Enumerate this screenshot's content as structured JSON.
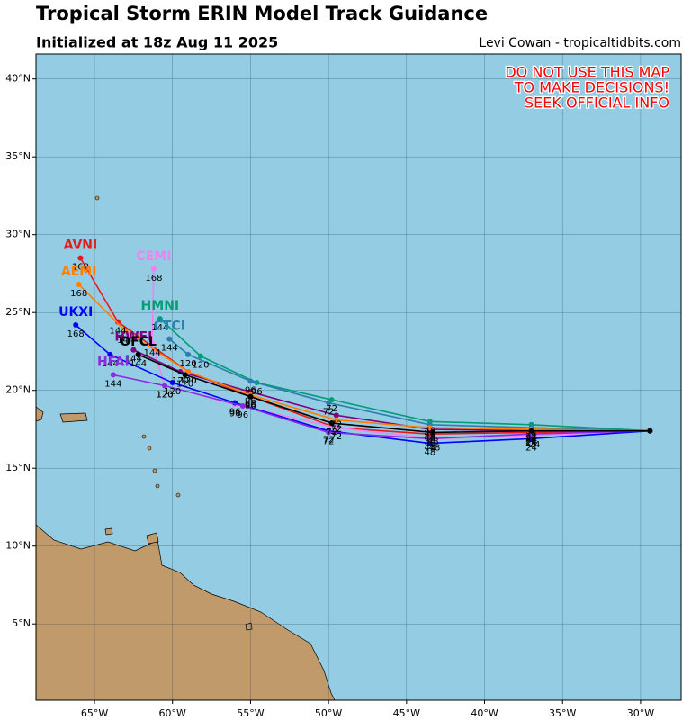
{
  "chart_data": {
    "type": "track-map",
    "title": "Tropical Storm ERIN Model Track Guidance",
    "subtitle": "Initialized at 18z Aug 11 2025",
    "credit": "Levi Cowan - tropicaltidbits.com",
    "warning": [
      "DO NOT USE THIS MAP",
      "TO MAKE DECISIONS!",
      "SEEK OFFICIAL INFO"
    ],
    "xlim": [
      -68.75,
      -27.4
    ],
    "ylim": [
      0.1,
      41.6
    ],
    "xticks": [
      {
        "value": -65,
        "label": "65°W"
      },
      {
        "value": -60,
        "label": "60°W"
      },
      {
        "value": -55,
        "label": "55°W"
      },
      {
        "value": -50,
        "label": "50°W"
      },
      {
        "value": -45,
        "label": "45°W"
      },
      {
        "value": -40,
        "label": "40°W"
      },
      {
        "value": -35,
        "label": "35°W"
      },
      {
        "value": -30,
        "label": "30°W"
      }
    ],
    "yticks": [
      {
        "value": 5,
        "label": "5°N"
      },
      {
        "value": 10,
        "label": "10°N"
      },
      {
        "value": 15,
        "label": "15°N"
      },
      {
        "value": 20,
        "label": "20°N"
      },
      {
        "value": 25,
        "label": "25°N"
      },
      {
        "value": 30,
        "label": "30°N"
      },
      {
        "value": 35,
        "label": "35°N"
      },
      {
        "value": 40,
        "label": "40°N"
      }
    ],
    "grid": true,
    "hours": [
      0,
      24,
      48,
      72,
      96,
      120,
      144,
      168
    ],
    "series": [
      {
        "name": "AVNI",
        "color": "#e41a1c",
        "lon": [
          -29.4,
          -37,
          -43.5,
          -49.5,
          -55,
          -59,
          -63.5,
          -65.9
        ],
        "lat": [
          17.4,
          17.3,
          17.2,
          17.6,
          19.6,
          21.2,
          24.4,
          28.5
        ]
      },
      {
        "name": "CEMI",
        "color": "#ee82ee",
        "lon": [
          -29.4,
          -36.8,
          -43.2,
          -49.5,
          -56,
          -60.5,
          -61.3,
          -61.2
        ],
        "lat": [
          17.4,
          17.1,
          16.9,
          17.6,
          19.1,
          20.3,
          23,
          27.8
        ]
      },
      {
        "name": "HMNI",
        "color": "#009e73",
        "lon": [
          -29.4,
          -37,
          -43.5,
          -49.8,
          -54.6,
          -58.2,
          -60.8
        ],
        "lat": [
          17.4,
          17.8,
          18.0,
          19.4,
          20.5,
          22.2,
          24.6
        ]
      },
      {
        "name": "CTCI",
        "color": "#2b7fae",
        "lon": [
          -29.4,
          -37,
          -43.5,
          -50,
          -55,
          -59,
          -60.2
        ],
        "lat": [
          17.4,
          17.6,
          17.8,
          19.2,
          20.6,
          22.3,
          23.3
        ]
      },
      {
        "name": "UKXI",
        "color": "#0000ff",
        "lon": [
          -29.4,
          -37,
          -43.5,
          -50,
          -56,
          -60,
          -64,
          -66.2
        ],
        "lat": [
          17.4,
          16.9,
          16.6,
          17.4,
          19.2,
          20.5,
          22.3,
          24.2
        ]
      },
      {
        "name": "HWFI",
        "color": "#800080",
        "lon": [
          -29.4,
          -37,
          -43.5,
          -49.5,
          -55,
          -59.5,
          -62.5
        ],
        "lat": [
          17.4,
          17.4,
          17.5,
          18.4,
          19.9,
          21.2,
          22.6
        ]
      },
      {
        "name": "AEMI",
        "color": "#ff7f00",
        "lon": [
          -29.4,
          -37,
          -43.5,
          -49.5,
          -55,
          -59,
          -63,
          -66
        ],
        "lat": [
          17.4,
          17.5,
          17.6,
          18.1,
          19.7,
          21.2,
          23.8,
          26.8
        ]
      },
      {
        "name": "HFAI",
        "color": "#8a2be2",
        "lon": [
          -29.4,
          -37,
          -43.5,
          -50,
          -55.5,
          -60.5,
          -63.8
        ],
        "lat": [
          17.4,
          17.2,
          16.9,
          17.3,
          19.0,
          20.3,
          21.0
        ]
      },
      {
        "name": "OFCL",
        "color": "#000000",
        "lon": [
          -29.4,
          -37,
          -43.3,
          -49.8,
          -55,
          -59.2,
          -62.2
        ],
        "lat": [
          17.4,
          17.4,
          17.3,
          17.9,
          19.6,
          21.0,
          22.3
        ]
      }
    ]
  }
}
